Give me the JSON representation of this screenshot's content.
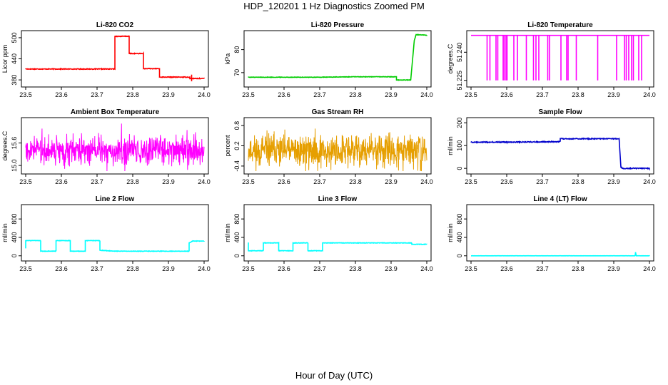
{
  "page": {
    "title": "HDP_120201  1 Hz Diagnostics Zoomed PM",
    "xlabel": "Hour of Day (UTC)"
  },
  "chart_data": [
    {
      "type": "line",
      "title": "Li-820 CO2",
      "ylabel": "Licor ppm",
      "color": "#ff0000",
      "xlim": [
        23.5,
        24.0
      ],
      "ylim": [
        368,
        512
      ],
      "xticks": [
        "23.5",
        "23.6",
        "23.7",
        "23.8",
        "23.9",
        "24.0"
      ],
      "yticks": [
        "380",
        "440",
        "500"
      ],
      "series": [
        {
          "pattern": "steps",
          "noise": 1,
          "points": [
            [
              23.5,
              411
            ],
            [
              23.75,
              411
            ],
            [
              23.75,
              504
            ],
            [
              23.79,
              504
            ],
            [
              23.79,
              455
            ],
            [
              23.83,
              455
            ],
            [
              23.83,
              412
            ],
            [
              23.875,
              412
            ],
            [
              23.875,
              388
            ],
            [
              23.96,
              388
            ],
            [
              23.96,
              384
            ],
            [
              24.0,
              384
            ]
          ],
          "spikes": [
            [
              23.965,
              395,
              376
            ]
          ]
        }
      ]
    },
    {
      "type": "line",
      "title": "Li-820 Pressure",
      "ylabel": "kPa",
      "color": "#00cc00",
      "xlim": [
        23.5,
        24.0
      ],
      "ylim": [
        65,
        87
      ],
      "xticks": [
        "23.5",
        "23.6",
        "23.7",
        "23.8",
        "23.9",
        "24.0"
      ],
      "yticks": [
        "70",
        "80"
      ],
      "series": [
        {
          "pattern": "steps",
          "noise": 0.1,
          "points": [
            [
              23.5,
              68
            ],
            [
              23.7,
              68
            ],
            [
              23.8,
              68.2
            ],
            [
              23.915,
              68.2
            ],
            [
              23.915,
              66.8
            ],
            [
              23.955,
              66.8
            ],
            [
              23.965,
              84
            ],
            [
              23.97,
              86.5
            ],
            [
              24.0,
              86.3
            ]
          ]
        }
      ]
    },
    {
      "type": "line",
      "title": "Li-820 Temperature",
      "ylabel": "degrees.C",
      "color": "#ff00ff",
      "xlim": [
        23.5,
        24.0
      ],
      "ylim": [
        51.223,
        51.25
      ],
      "xticks": [
        "23.5",
        "23.6",
        "23.7",
        "23.8",
        "23.9",
        "24.0"
      ],
      "yticks": [
        "51.225",
        "51.240"
      ],
      "series": [
        {
          "pattern": "drops",
          "base": 51.249,
          "low": 51.225,
          "drops_x": [
            23.545,
            23.553,
            23.57,
            23.575,
            23.59,
            23.593,
            23.598,
            23.601,
            23.62,
            23.63,
            23.655,
            23.675,
            23.682,
            23.69,
            23.715,
            23.72,
            23.752,
            23.768,
            23.772,
            23.795,
            23.855,
            23.908,
            23.93,
            23.935,
            23.942,
            23.95,
            23.955,
            23.97,
            23.978
          ]
        }
      ]
    },
    {
      "type": "line",
      "title": "Ambient Box Temperature",
      "ylabel": "degrees.C",
      "color": "#ff00ff",
      "xlim": [
        23.5,
        24.0
      ],
      "ylim": [
        14.85,
        16.2
      ],
      "xticks": [
        "23.5",
        "23.6",
        "23.7",
        "23.8",
        "23.9",
        "24.0"
      ],
      "yticks": [
        "15.0",
        "15.6"
      ],
      "series": [
        {
          "pattern": "noise",
          "center": 15.42,
          "amp": 0.55,
          "seed": 3
        }
      ]
    },
    {
      "type": "line",
      "title": "Gas Stream RH",
      "ylabel": "percent",
      "color": "#e69f00",
      "xlim": [
        23.5,
        24.0
      ],
      "ylim": [
        -0.55,
        0.95
      ],
      "xticks": [
        "23.5",
        "23.6",
        "23.7",
        "23.8",
        "23.9",
        "24.0"
      ],
      "yticks": [
        "-0.4",
        "0.2",
        "0.8"
      ],
      "series": [
        {
          "pattern": "noise",
          "center": 0.05,
          "amp": 0.7,
          "seed": 11
        }
      ]
    },
    {
      "type": "line",
      "title": "Sample Flow",
      "ylabel": "ml/min",
      "color": "#0000cc",
      "xlim": [
        23.5,
        24.0
      ],
      "ylim": [
        -12,
        210
      ],
      "xticks": [
        "23.5",
        "23.6",
        "23.7",
        "23.8",
        "23.9",
        "24.0"
      ],
      "yticks": [
        "0",
        "100",
        "200"
      ],
      "series": [
        {
          "pattern": "steps",
          "noise": 2,
          "points": [
            [
              23.5,
              115
            ],
            [
              23.6,
              115
            ],
            [
              23.75,
              117
            ],
            [
              23.75,
              130
            ],
            [
              23.915,
              130
            ],
            [
              23.92,
              5
            ],
            [
              23.925,
              0
            ],
            [
              24.0,
              0
            ]
          ]
        }
      ]
    },
    {
      "type": "line",
      "title": "Line 2 Flow",
      "ylabel": "ml/min",
      "color": "#00ffff",
      "xlim": [
        23.5,
        24.0
      ],
      "ylim": [
        -50,
        1050
      ],
      "xticks": [
        "23.5",
        "23.6",
        "23.7",
        "23.8",
        "23.9",
        "24.0"
      ],
      "yticks": [
        "0",
        "400",
        "800"
      ],
      "series": [
        {
          "pattern": "steps",
          "noise": 5,
          "points": [
            [
              23.5,
              160
            ],
            [
              23.5,
              330
            ],
            [
              23.542,
              330
            ],
            [
              23.542,
              100
            ],
            [
              23.585,
              100
            ],
            [
              23.585,
              330
            ],
            [
              23.625,
              330
            ],
            [
              23.625,
              100
            ],
            [
              23.667,
              100
            ],
            [
              23.667,
              330
            ],
            [
              23.708,
              330
            ],
            [
              23.708,
              120
            ],
            [
              23.75,
              100
            ],
            [
              23.958,
              100
            ],
            [
              23.958,
              280
            ],
            [
              23.968,
              320
            ],
            [
              24.0,
              320
            ]
          ]
        }
      ]
    },
    {
      "type": "line",
      "title": "Line 3 Flow",
      "ylabel": "ml/min",
      "color": "#00ffff",
      "xlim": [
        23.5,
        24.0
      ],
      "ylim": [
        -50,
        1050
      ],
      "xticks": [
        "23.5",
        "23.6",
        "23.7",
        "23.8",
        "23.9",
        "24.0"
      ],
      "yticks": [
        "0",
        "400",
        "800"
      ],
      "series": [
        {
          "pattern": "steps",
          "noise": 5,
          "points": [
            [
              23.5,
              290
            ],
            [
              23.5,
              110
            ],
            [
              23.542,
              110
            ],
            [
              23.542,
              280
            ],
            [
              23.585,
              280
            ],
            [
              23.585,
              110
            ],
            [
              23.625,
              110
            ],
            [
              23.625,
              280
            ],
            [
              23.667,
              280
            ],
            [
              23.667,
              110
            ],
            [
              23.708,
              110
            ],
            [
              23.708,
              280
            ],
            [
              23.958,
              280
            ],
            [
              23.958,
              250
            ],
            [
              24.0,
              250
            ]
          ]
        }
      ]
    },
    {
      "type": "line",
      "title": "Line 4 (LT) Flow",
      "ylabel": "ml/min",
      "color": "#00ffff",
      "xlim": [
        23.5,
        24.0
      ],
      "ylim": [
        -50,
        1050
      ],
      "xticks": [
        "23.5",
        "23.6",
        "23.7",
        "23.8",
        "23.9",
        "24.0"
      ],
      "yticks": [
        "0",
        "400",
        "800"
      ],
      "series": [
        {
          "pattern": "steps",
          "noise": 1,
          "points": [
            [
              23.5,
              0
            ],
            [
              23.96,
              0
            ],
            [
              23.961,
              80
            ],
            [
              23.963,
              0
            ],
            [
              24.0,
              0
            ]
          ]
        }
      ]
    }
  ]
}
